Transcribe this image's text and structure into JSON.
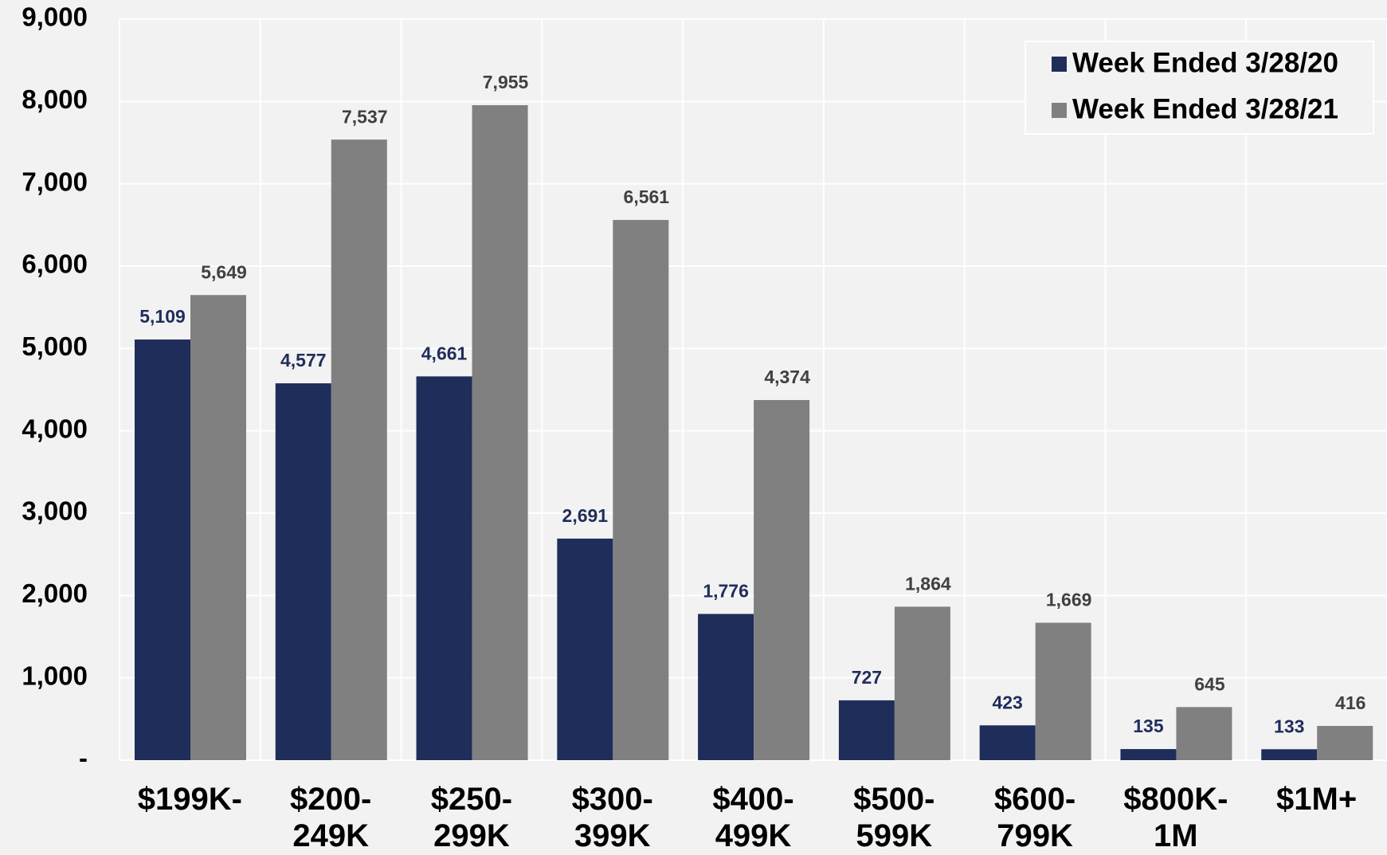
{
  "chart_data": {
    "type": "bar",
    "categories": [
      "$199K-",
      "$200-\n249K",
      "$250-\n299K",
      "$300-\n399K",
      "$400-\n499K",
      "$500-\n599K",
      "$600-\n799K",
      "$800K-\n1M",
      "$1M+"
    ],
    "series": [
      {
        "name": "Week Ended 3/28/20",
        "color": "#1f2d5a",
        "label_color": "#1f2d5a",
        "values": [
          5109,
          4577,
          4661,
          2691,
          1776,
          727,
          423,
          135,
          133
        ],
        "value_labels": [
          "5,109",
          "4,577",
          "4,661",
          "2,691",
          "1,776",
          "727",
          "423",
          "135",
          "133"
        ]
      },
      {
        "name": "Week Ended 3/28/21",
        "color": "#808080",
        "label_color": "#404040",
        "values": [
          5649,
          7537,
          7955,
          6561,
          4374,
          1864,
          1669,
          645,
          416
        ],
        "value_labels": [
          "5,649",
          "7,537",
          "7,955",
          "6,561",
          "4,374",
          "1,864",
          "1,669",
          "645",
          "416"
        ]
      }
    ],
    "ylim": [
      0,
      9000
    ],
    "yticks": [
      {
        "value": 0,
        "label": "-"
      },
      {
        "value": 1000,
        "label": "1,000"
      },
      {
        "value": 2000,
        "label": "2,000"
      },
      {
        "value": 3000,
        "label": "3,000"
      },
      {
        "value": 4000,
        "label": "4,000"
      },
      {
        "value": 5000,
        "label": "5,000"
      },
      {
        "value": 6000,
        "label": "6,000"
      },
      {
        "value": 7000,
        "label": "7,000"
      },
      {
        "value": 8000,
        "label": "8,000"
      },
      {
        "value": 9000,
        "label": "9,000"
      }
    ],
    "grid": true,
    "legend": "top-right"
  }
}
